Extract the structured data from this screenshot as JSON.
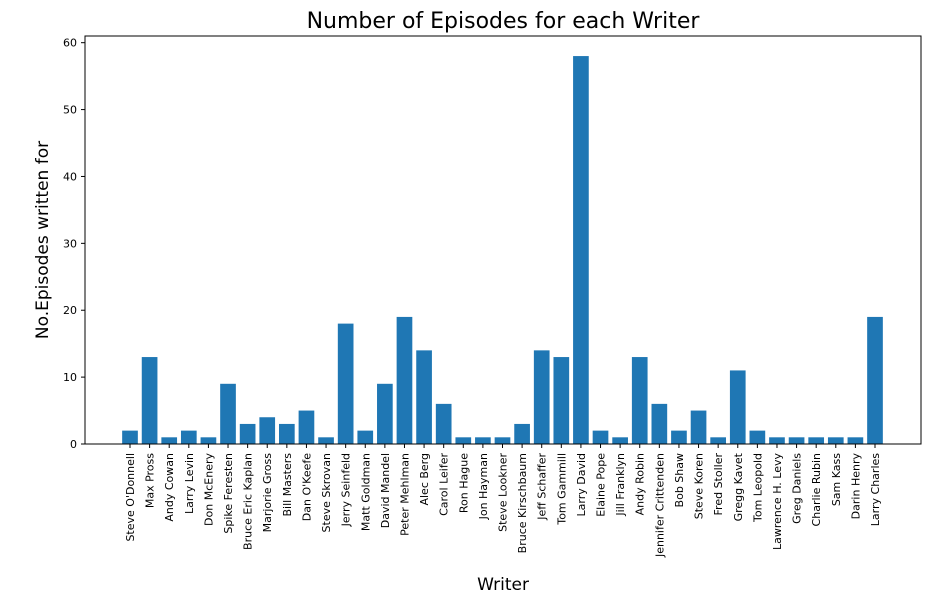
{
  "chart_data": {
    "type": "bar",
    "title": "Number of Episodes for each Writer",
    "xlabel": "Writer",
    "ylabel": "No.Episodes written for",
    "ylim": [
      0,
      61
    ],
    "yticks": [
      0,
      10,
      20,
      30,
      40,
      50,
      60
    ],
    "grid": false,
    "bar_color": "#1f77b4",
    "categories": [
      "Steve O'Donnell",
      "Max Pross",
      "Andy Cowan",
      "Larry Levin",
      "Don McEnery",
      "Spike Feresten",
      "Bruce Eric Kaplan",
      "Marjorie Gross",
      "Bill Masters",
      "Dan O'Keefe",
      "Steve Skrovan",
      "Jerry Seinfeld",
      "Matt Goldman",
      "David Mandel",
      "Peter Mehlman",
      "Alec Berg",
      "Carol Leifer",
      "Ron Hague",
      "Jon Hayman",
      "Steve Lookner",
      "Bruce Kirschbaum",
      "Jeff Schaffer",
      "Tom Gammill",
      "Larry David",
      "Elaine Pope",
      "Jill Franklyn",
      "Andy Robin",
      "Jennifer Crittenden",
      "Bob Shaw",
      "Steve Koren",
      "Fred Stoller",
      "Gregg Kavet",
      "Tom Leopold",
      "Lawrence H. Levy",
      "Greg Daniels",
      "Charlie Rubin",
      "Sam Kass",
      "Darin Henry",
      "Larry Charles"
    ],
    "values": [
      2,
      13,
      1,
      2,
      1,
      9,
      3,
      4,
      3,
      5,
      1,
      18,
      2,
      9,
      19,
      14,
      6,
      1,
      1,
      1,
      3,
      14,
      13,
      58,
      2,
      1,
      13,
      6,
      2,
      5,
      1,
      11,
      2,
      1,
      1,
      1,
      1,
      1,
      19
    ]
  }
}
